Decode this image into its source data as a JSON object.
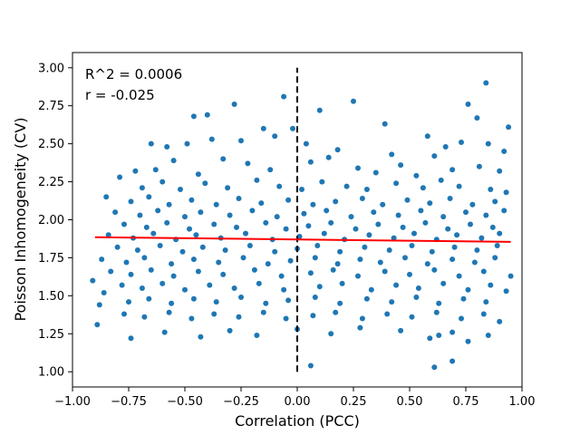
{
  "chart_data": {
    "type": "scatter",
    "title": "",
    "xlabel": "Correlation (PCC)",
    "ylabel": "Poisson Inhomogeneity (CV)",
    "xlim": [
      -1.0,
      1.0
    ],
    "ylim": [
      0.9,
      3.1
    ],
    "grid": false,
    "xticks": [
      "−1.00",
      "−0.75",
      "−0.50",
      "−0.25",
      "0.00",
      "0.25",
      "0.50",
      "0.75",
      "1.00"
    ],
    "xtick_values": [
      -1.0,
      -0.75,
      -0.5,
      -0.25,
      0.0,
      0.25,
      0.5,
      0.75,
      1.0
    ],
    "yticks": [
      "1.00",
      "1.25",
      "1.50",
      "1.75",
      "2.00",
      "2.25",
      "2.50",
      "2.75",
      "3.00"
    ],
    "ytick_values": [
      1.0,
      1.25,
      1.5,
      1.75,
      2.0,
      2.25,
      2.5,
      2.75,
      3.0
    ],
    "annotations": [
      "R^2 = 0.0006",
      "r = -0.025"
    ],
    "colors": {
      "points": "#1f77b4",
      "fit": "#ff0000",
      "zero_line": "#000000"
    },
    "fit_line": {
      "x": [
        -0.9,
        0.95
      ],
      "y": [
        1.885,
        1.855
      ]
    },
    "zero_line": {
      "x": 0.0,
      "y": [
        1.0,
        3.0
      ]
    },
    "series": [
      {
        "values": [
          [
            0.84,
            2.9
          ],
          [
            -0.06,
            2.81
          ],
          [
            0.76,
            2.76
          ],
          [
            0.25,
            2.78
          ],
          [
            -0.28,
            2.76
          ],
          [
            0.1,
            2.72
          ],
          [
            0.39,
            2.63
          ],
          [
            0.8,
            2.67
          ],
          [
            0.94,
            2.61
          ],
          [
            -0.46,
            2.68
          ],
          [
            -0.4,
            2.69
          ],
          [
            -0.15,
            2.6
          ],
          [
            -0.02,
            2.6
          ],
          [
            -0.65,
            2.5
          ],
          [
            -0.58,
            2.48
          ],
          [
            -0.49,
            2.5
          ],
          [
            -0.38,
            2.53
          ],
          [
            -0.25,
            2.52
          ],
          [
            -0.1,
            2.55
          ],
          [
            0.04,
            2.5
          ],
          [
            0.18,
            2.46
          ],
          [
            0.42,
            2.43
          ],
          [
            0.58,
            2.55
          ],
          [
            0.66,
            2.48
          ],
          [
            0.73,
            2.51
          ],
          [
            0.85,
            2.5
          ],
          [
            0.92,
            2.45
          ],
          [
            -0.72,
            2.32
          ],
          [
            -0.63,
            2.33
          ],
          [
            -0.55,
            2.39
          ],
          [
            -0.44,
            2.3
          ],
          [
            -0.33,
            2.4
          ],
          [
            -0.22,
            2.37
          ],
          [
            -0.12,
            2.33
          ],
          [
            0.06,
            2.38
          ],
          [
            0.14,
            2.41
          ],
          [
            0.27,
            2.34
          ],
          [
            0.35,
            2.31
          ],
          [
            0.46,
            2.36
          ],
          [
            0.53,
            2.29
          ],
          [
            0.61,
            2.42
          ],
          [
            0.69,
            2.33
          ],
          [
            0.81,
            2.35
          ],
          [
            0.9,
            2.32
          ],
          [
            -0.79,
            2.28
          ],
          [
            -0.69,
            2.21
          ],
          [
            -0.6,
            2.25
          ],
          [
            -0.52,
            2.2
          ],
          [
            -0.41,
            2.24
          ],
          [
            -0.31,
            2.21
          ],
          [
            -0.18,
            2.26
          ],
          [
            -0.08,
            2.22
          ],
          [
            0.02,
            2.2
          ],
          [
            0.11,
            2.25
          ],
          [
            0.22,
            2.22
          ],
          [
            0.31,
            2.2
          ],
          [
            0.44,
            2.24
          ],
          [
            0.56,
            2.21
          ],
          [
            0.64,
            2.26
          ],
          [
            0.72,
            2.22
          ],
          [
            0.86,
            2.2
          ],
          [
            0.93,
            2.18
          ],
          [
            -0.85,
            2.15
          ],
          [
            -0.74,
            2.12
          ],
          [
            -0.66,
            2.15
          ],
          [
            -0.57,
            2.1
          ],
          [
            -0.47,
            2.13
          ],
          [
            -0.36,
            2.1
          ],
          [
            -0.26,
            2.14
          ],
          [
            -0.16,
            2.11
          ],
          [
            -0.04,
            2.13
          ],
          [
            0.07,
            2.1
          ],
          [
            0.17,
            2.12
          ],
          [
            0.29,
            2.14
          ],
          [
            0.38,
            2.1
          ],
          [
            0.49,
            2.13
          ],
          [
            0.59,
            2.11
          ],
          [
            0.68,
            2.14
          ],
          [
            0.78,
            2.1
          ],
          [
            0.88,
            2.12
          ],
          [
            -0.81,
            2.05
          ],
          [
            -0.7,
            2.03
          ],
          [
            -0.62,
            2.06
          ],
          [
            -0.5,
            2.02
          ],
          [
            -0.43,
            2.05
          ],
          [
            -0.3,
            2.03
          ],
          [
            -0.2,
            2.06
          ],
          [
            -0.09,
            2.02
          ],
          [
            0.03,
            2.04
          ],
          [
            0.13,
            2.06
          ],
          [
            0.24,
            2.02
          ],
          [
            0.34,
            2.05
          ],
          [
            0.45,
            2.03
          ],
          [
            0.55,
            2.06
          ],
          [
            0.65,
            2.02
          ],
          [
            0.75,
            2.05
          ],
          [
            0.84,
            2.03
          ],
          [
            0.92,
            2.06
          ],
          [
            -0.77,
            1.97
          ],
          [
            -0.67,
            1.95
          ],
          [
            -0.58,
            1.98
          ],
          [
            -0.48,
            1.94
          ],
          [
            -0.37,
            1.97
          ],
          [
            -0.27,
            1.95
          ],
          [
            -0.14,
            1.98
          ],
          [
            -0.05,
            1.94
          ],
          [
            0.05,
            1.96
          ],
          [
            0.15,
            1.98
          ],
          [
            0.26,
            1.94
          ],
          [
            0.36,
            1.97
          ],
          [
            0.47,
            1.95
          ],
          [
            0.57,
            1.98
          ],
          [
            0.67,
            1.94
          ],
          [
            0.77,
            1.97
          ],
          [
            0.87,
            1.95
          ],
          [
            -0.84,
            1.9
          ],
          [
            -0.73,
            1.88
          ],
          [
            -0.64,
            1.91
          ],
          [
            -0.54,
            1.87
          ],
          [
            -0.45,
            1.9
          ],
          [
            -0.34,
            1.88
          ],
          [
            -0.23,
            1.91
          ],
          [
            -0.11,
            1.87
          ],
          [
            0.01,
            1.89
          ],
          [
            0.12,
            1.91
          ],
          [
            0.21,
            1.87
          ],
          [
            0.32,
            1.9
          ],
          [
            0.43,
            1.88
          ],
          [
            0.52,
            1.91
          ],
          [
            0.62,
            1.87
          ],
          [
            0.71,
            1.9
          ],
          [
            0.82,
            1.88
          ],
          [
            0.9,
            1.91
          ],
          [
            -0.8,
            1.82
          ],
          [
            -0.71,
            1.8
          ],
          [
            -0.61,
            1.83
          ],
          [
            -0.51,
            1.79
          ],
          [
            -0.42,
            1.82
          ],
          [
            -0.32,
            1.8
          ],
          [
            -0.21,
            1.83
          ],
          [
            -0.1,
            1.79
          ],
          [
            0.0,
            1.81
          ],
          [
            0.09,
            1.83
          ],
          [
            0.19,
            1.79
          ],
          [
            0.3,
            1.82
          ],
          [
            0.41,
            1.8
          ],
          [
            0.51,
            1.83
          ],
          [
            0.6,
            1.79
          ],
          [
            0.7,
            1.82
          ],
          [
            0.8,
            1.8
          ],
          [
            0.89,
            1.83
          ],
          [
            -0.87,
            1.74
          ],
          [
            -0.76,
            1.72
          ],
          [
            -0.68,
            1.75
          ],
          [
            -0.56,
            1.71
          ],
          [
            -0.46,
            1.74
          ],
          [
            -0.35,
            1.72
          ],
          [
            -0.24,
            1.75
          ],
          [
            -0.13,
            1.71
          ],
          [
            -0.03,
            1.73
          ],
          [
            0.08,
            1.75
          ],
          [
            0.18,
            1.71
          ],
          [
            0.28,
            1.74
          ],
          [
            0.37,
            1.72
          ],
          [
            0.48,
            1.75
          ],
          [
            0.58,
            1.71
          ],
          [
            0.69,
            1.74
          ],
          [
            0.79,
            1.72
          ],
          [
            0.88,
            1.75
          ],
          [
            -0.91,
            1.6
          ],
          [
            -0.83,
            1.66
          ],
          [
            -0.74,
            1.64
          ],
          [
            -0.65,
            1.67
          ],
          [
            -0.55,
            1.63
          ],
          [
            -0.44,
            1.66
          ],
          [
            -0.33,
            1.64
          ],
          [
            -0.19,
            1.67
          ],
          [
            -0.07,
            1.63
          ],
          [
            0.06,
            1.65
          ],
          [
            0.16,
            1.67
          ],
          [
            0.27,
            1.63
          ],
          [
            0.39,
            1.66
          ],
          [
            0.5,
            1.64
          ],
          [
            0.61,
            1.67
          ],
          [
            0.72,
            1.63
          ],
          [
            0.83,
            1.66
          ],
          [
            0.95,
            1.63
          ],
          [
            -0.86,
            1.52
          ],
          [
            -0.78,
            1.57
          ],
          [
            -0.69,
            1.55
          ],
          [
            -0.6,
            1.58
          ],
          [
            -0.5,
            1.54
          ],
          [
            -0.39,
            1.57
          ],
          [
            -0.28,
            1.55
          ],
          [
            -0.17,
            1.58
          ],
          [
            -0.06,
            1.54
          ],
          [
            0.1,
            1.56
          ],
          [
            0.2,
            1.58
          ],
          [
            0.33,
            1.54
          ],
          [
            0.44,
            1.57
          ],
          [
            0.54,
            1.55
          ],
          [
            0.65,
            1.58
          ],
          [
            0.76,
            1.54
          ],
          [
            0.86,
            1.57
          ],
          [
            0.93,
            1.53
          ],
          [
            -0.88,
            1.44
          ],
          [
            -0.75,
            1.46
          ],
          [
            -0.66,
            1.48
          ],
          [
            -0.56,
            1.45
          ],
          [
            -0.46,
            1.48
          ],
          [
            -0.36,
            1.46
          ],
          [
            -0.25,
            1.49
          ],
          [
            -0.14,
            1.45
          ],
          [
            -0.04,
            1.47
          ],
          [
            0.08,
            1.49
          ],
          [
            0.19,
            1.45
          ],
          [
            0.31,
            1.48
          ],
          [
            0.42,
            1.46
          ],
          [
            0.53,
            1.49
          ],
          [
            0.63,
            1.45
          ],
          [
            0.74,
            1.48
          ],
          [
            0.84,
            1.46
          ],
          [
            -0.89,
            1.31
          ],
          [
            -0.77,
            1.38
          ],
          [
            -0.68,
            1.36
          ],
          [
            -0.57,
            1.39
          ],
          [
            -0.47,
            1.35
          ],
          [
            -0.37,
            1.38
          ],
          [
            -0.26,
            1.36
          ],
          [
            -0.15,
            1.39
          ],
          [
            -0.05,
            1.35
          ],
          [
            0.07,
            1.37
          ],
          [
            0.17,
            1.39
          ],
          [
            0.29,
            1.35
          ],
          [
            0.4,
            1.38
          ],
          [
            0.51,
            1.36
          ],
          [
            0.62,
            1.39
          ],
          [
            0.73,
            1.35
          ],
          [
            0.83,
            1.38
          ],
          [
            0.9,
            1.33
          ],
          [
            -0.74,
            1.22
          ],
          [
            -0.59,
            1.26
          ],
          [
            -0.43,
            1.23
          ],
          [
            -0.3,
            1.27
          ],
          [
            -0.18,
            1.24
          ],
          [
            0.0,
            1.28
          ],
          [
            0.15,
            1.25
          ],
          [
            0.28,
            1.29
          ],
          [
            0.46,
            1.27
          ],
          [
            0.59,
            1.22
          ],
          [
            0.63,
            1.24
          ],
          [
            0.69,
            1.26
          ],
          [
            0.76,
            1.2
          ],
          [
            0.85,
            1.24
          ],
          [
            0.06,
            1.04
          ],
          [
            0.61,
            1.03
          ],
          [
            0.69,
            1.07
          ]
        ]
      }
    ]
  }
}
